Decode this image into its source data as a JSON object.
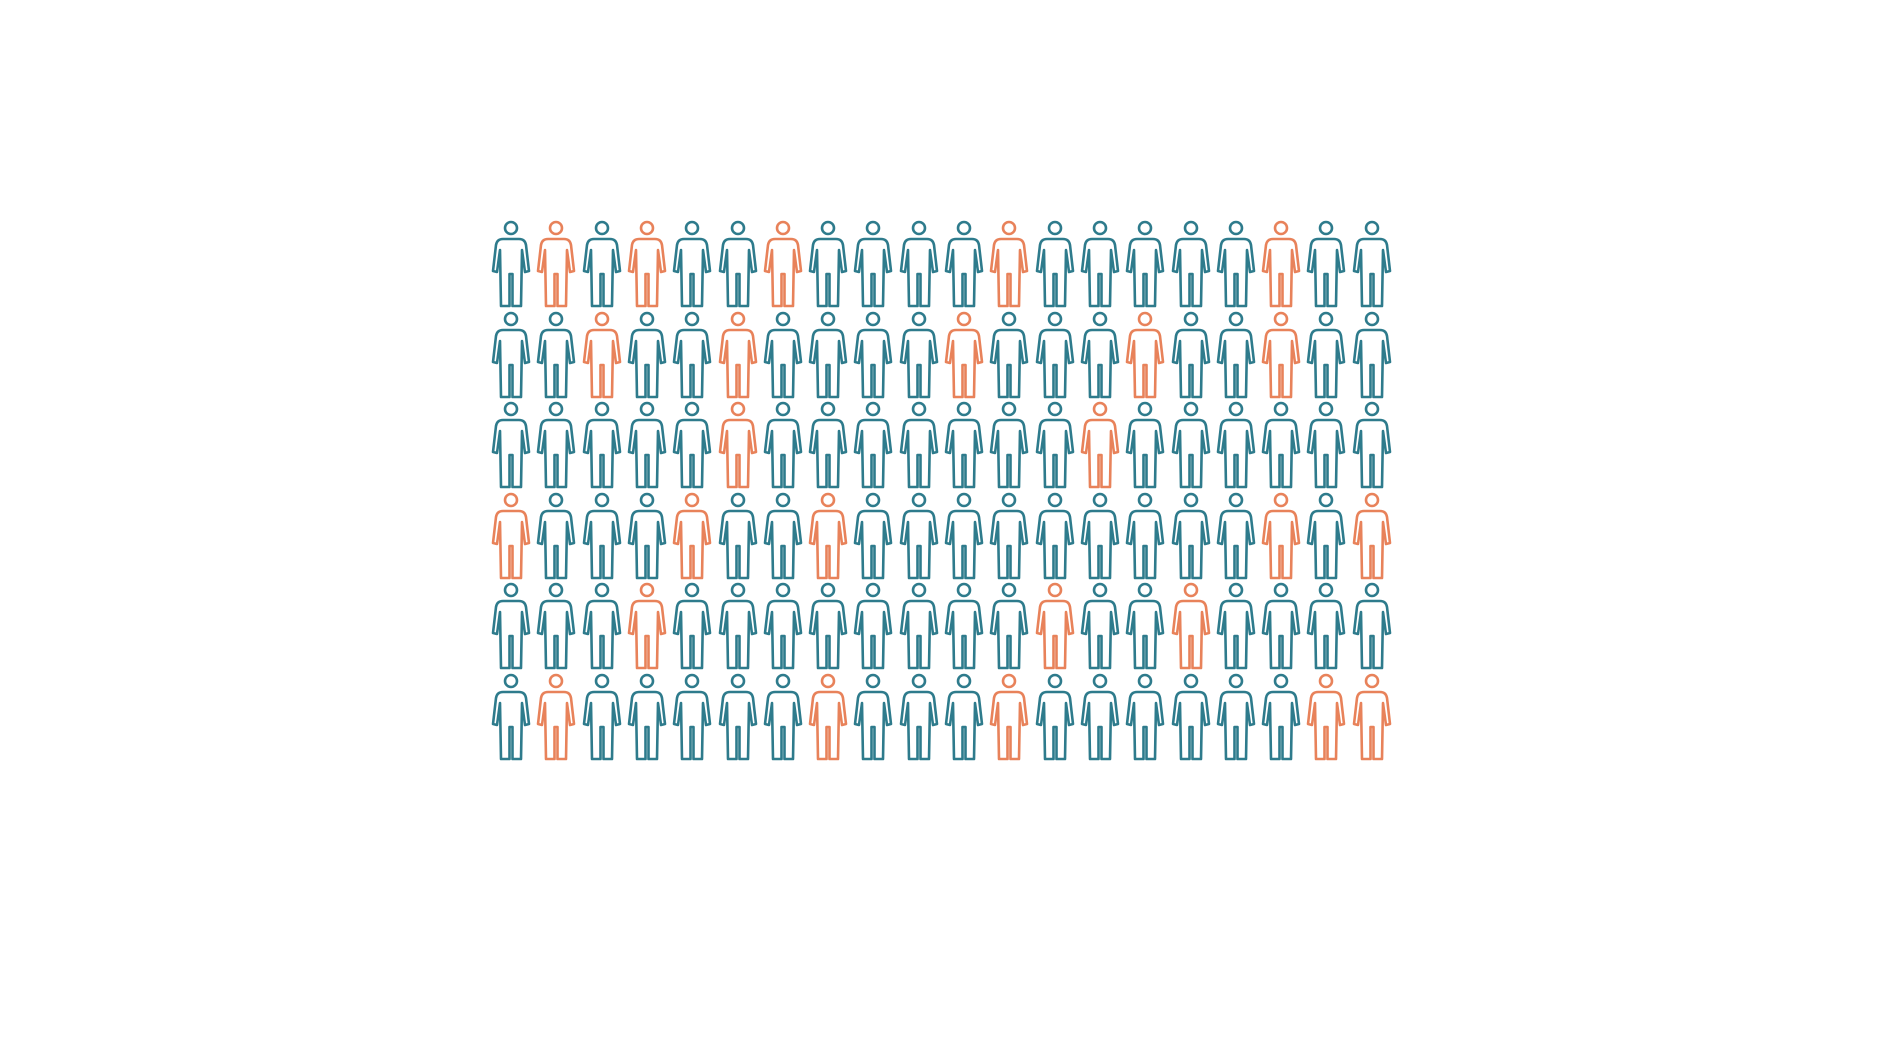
{
  "pictogram": {
    "rows": 6,
    "cols": 20,
    "icon": "person-icon",
    "colors": {
      "default": "#2e7b8c",
      "highlight": "#e8825a"
    },
    "highlighted": [
      [
        1,
        3,
        6,
        11,
        17
      ],
      [
        2,
        5,
        10,
        14,
        17
      ],
      [
        5,
        13
      ],
      [
        0,
        4,
        7,
        17,
        19
      ],
      [
        3,
        12,
        15
      ],
      [
        1,
        7,
        11,
        18,
        19
      ]
    ]
  }
}
